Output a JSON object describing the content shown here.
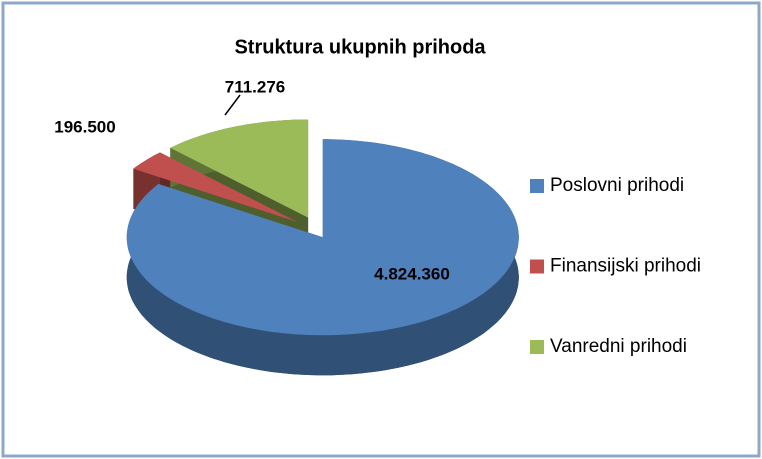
{
  "chart_data": {
    "type": "pie",
    "title": "Struktura ukupnih prihoda",
    "categories": [
      "Poslovni prihodi",
      "Finansijski prihodi",
      "Vanredni prihodi"
    ],
    "values": [
      4824360,
      196500,
      711276
    ],
    "value_labels": [
      "4.824.360",
      "196.500",
      "711.276"
    ],
    "colors": [
      "#4f81bd",
      "#c0504d",
      "#9bbb59"
    ],
    "legend": "right"
  }
}
